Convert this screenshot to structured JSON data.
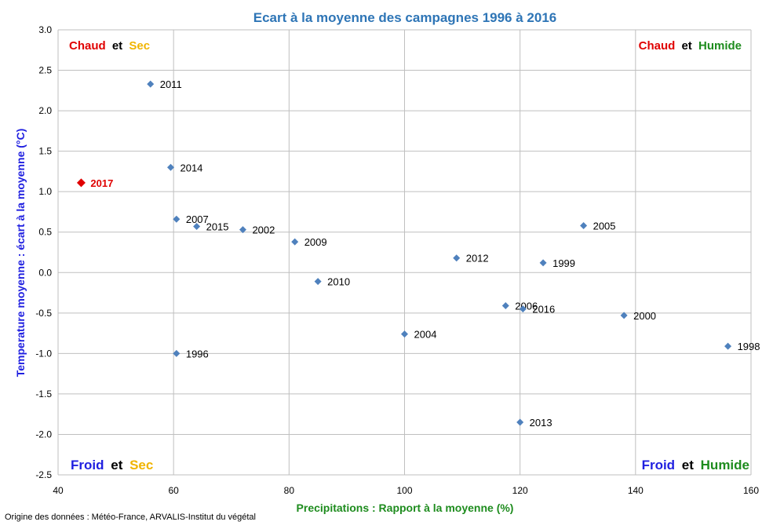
{
  "chart_data": {
    "type": "scatter",
    "title": "Ecart à la moyenne des campagnes 1996 à 2016",
    "xlabel": "Precipitations : Rapport à la moyenne (%)",
    "ylabel": "Temperature moyenne : écart à la moyenne (°C)",
    "xlim": [
      40,
      160
    ],
    "ylim": [
      -2.5,
      3.0
    ],
    "x_ticks": [
      "40",
      "60",
      "80",
      "100",
      "120",
      "140",
      "160"
    ],
    "y_ticks": [
      "3.0",
      "2.5",
      "2.0",
      "1.5",
      "1.0",
      "0.5",
      "0.0",
      "-0.5",
      "-1.0",
      "-1.5",
      "-2.0",
      "-2.5"
    ],
    "grid": true,
    "colors": {
      "points": "#4F81BD",
      "highlight": "#E00000",
      "title": "#2E75B6",
      "xlabel": "#1E8C1E",
      "ylabel": "#2020E0",
      "chaud": "#E00000",
      "sec": "#F0B400",
      "humide": "#1E8C1E",
      "froid": "#2020E0"
    },
    "points": [
      {
        "label": "2011",
        "x": 56,
        "y": 2.33
      },
      {
        "label": "2014",
        "x": 59.5,
        "y": 1.3
      },
      {
        "label": "2017",
        "x": 44,
        "y": 1.11,
        "highlight": true
      },
      {
        "label": "2007",
        "x": 60.5,
        "y": 0.66
      },
      {
        "label": "2015",
        "x": 64,
        "y": 0.57
      },
      {
        "label": "2002",
        "x": 72,
        "y": 0.53
      },
      {
        "label": "2009",
        "x": 81,
        "y": 0.38
      },
      {
        "label": "2010",
        "x": 85,
        "y": -0.11
      },
      {
        "label": "1996",
        "x": 60.5,
        "y": -1.0
      },
      {
        "label": "2004",
        "x": 100,
        "y": -0.76
      },
      {
        "label": "2012",
        "x": 109,
        "y": 0.18
      },
      {
        "label": "2006",
        "x": 117.5,
        "y": -0.41
      },
      {
        "label": "2016",
        "x": 120.5,
        "y": -0.45
      },
      {
        "label": "1999",
        "x": 124,
        "y": 0.12
      },
      {
        "label": "2005",
        "x": 131,
        "y": 0.58
      },
      {
        "label": "2000",
        "x": 138,
        "y": -0.53
      },
      {
        "label": "2013",
        "x": 120,
        "y": -1.85
      },
      {
        "label": "1998",
        "x": 156,
        "y": -0.91
      }
    ],
    "quadrants": {
      "top_left": {
        "first": "Chaud",
        "joiner": "et",
        "second": "Sec"
      },
      "top_right": {
        "first": "Chaud",
        "joiner": "et",
        "second": "Humide"
      },
      "bottom_left": {
        "first": "Froid",
        "joiner": "et",
        "second": "Sec"
      },
      "bottom_right": {
        "first": "Froid",
        "joiner": "et",
        "second": "Humide"
      }
    }
  },
  "source": "Origine des données : Météo-France, ARVALIS-Institut du végétal"
}
